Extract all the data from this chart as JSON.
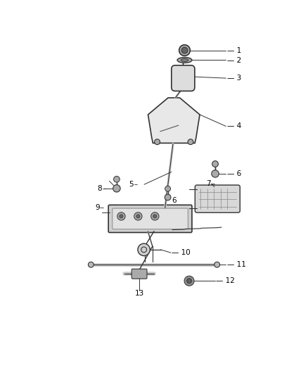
{
  "background_color": "#ffffff",
  "line_color": "#333333",
  "label_color": "#000000",
  "fig_width": 4.38,
  "fig_height": 5.33,
  "dpi": 100
}
